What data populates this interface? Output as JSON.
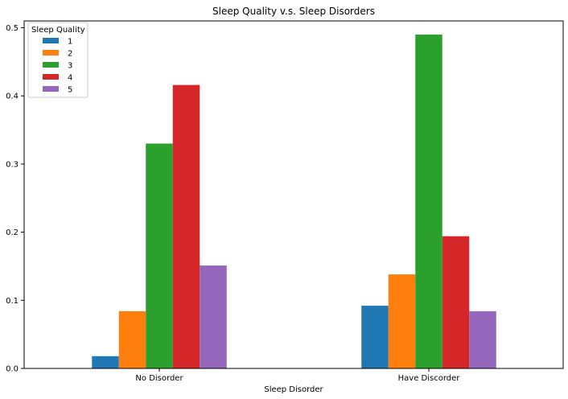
{
  "chart_data": {
    "type": "bar",
    "title": "Sleep Quality v.s. Sleep Disorders",
    "xlabel": "Sleep Disorder",
    "ylabel": "",
    "categories": [
      "No Disorder",
      "Have Discorder"
    ],
    "ylim": [
      0,
      0.51
    ],
    "yticks": [
      0.0,
      0.1,
      0.2,
      0.3,
      0.4,
      0.5
    ],
    "ytick_labels": [
      "0.0",
      "0.1",
      "0.2",
      "0.3",
      "0.4",
      "0.5"
    ],
    "grid": false,
    "legend": {
      "title": "Sleep Quality",
      "position": "top-left"
    },
    "series": [
      {
        "name": "1",
        "color": "#1f77b4",
        "values": [
          0.018,
          0.092
        ]
      },
      {
        "name": "2",
        "color": "#ff7f0e",
        "values": [
          0.084,
          0.138
        ]
      },
      {
        "name": "3",
        "color": "#2ca02c",
        "values": [
          0.33,
          0.49
        ]
      },
      {
        "name": "4",
        "color": "#d62728",
        "values": [
          0.416,
          0.194
        ]
      },
      {
        "name": "5",
        "color": "#9467bd",
        "values": [
          0.151,
          0.084
        ]
      }
    ]
  }
}
